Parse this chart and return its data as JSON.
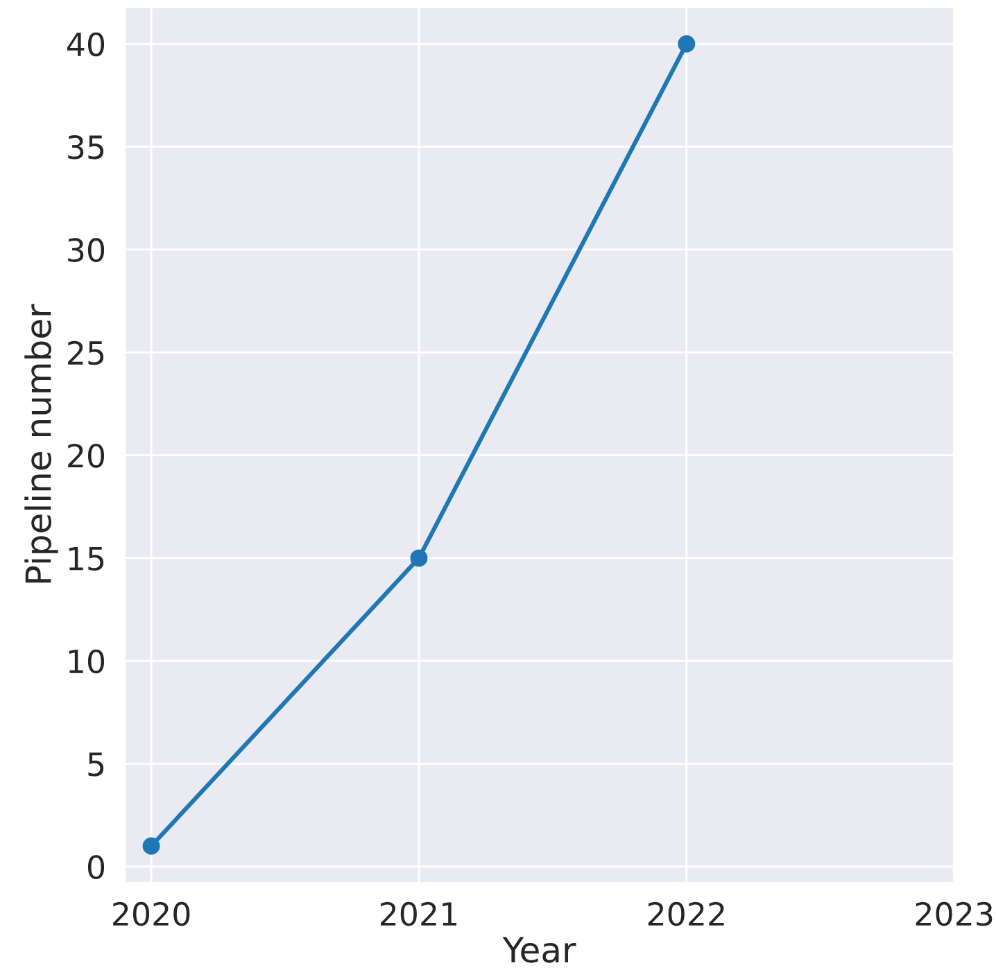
{
  "chart_data": {
    "type": "line",
    "xlabel": "Year",
    "ylabel": "Pipeline number",
    "x": [
      2020,
      2021,
      2022
    ],
    "series": [
      {
        "color": "#1f77b4",
        "values": [
          1,
          15,
          40
        ]
      }
    ],
    "xlim": [
      2019.9,
      2023
    ],
    "ylim": [
      -0.8,
      41.8
    ],
    "xticks": [
      2020,
      2021,
      2022,
      2023
    ],
    "yticks": [
      0,
      5,
      10,
      15,
      20,
      25,
      30,
      35,
      40
    ],
    "grid": true,
    "marker": "circle",
    "line_style": "solid",
    "legend": false
  }
}
